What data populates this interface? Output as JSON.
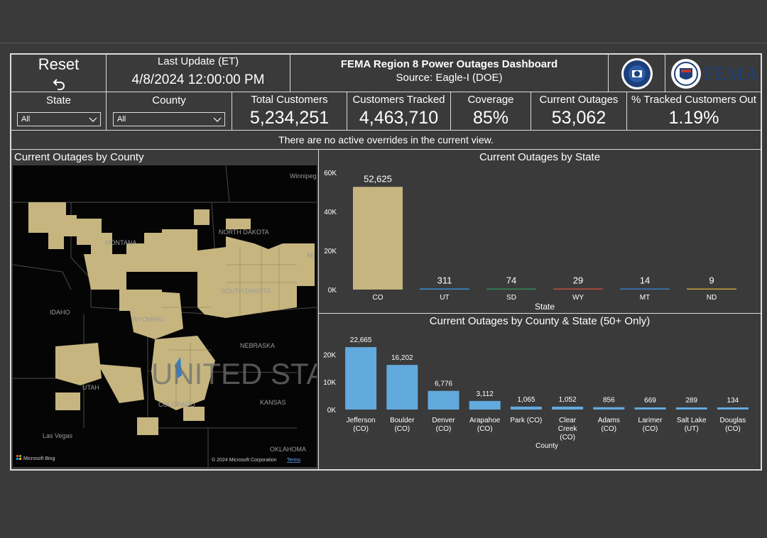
{
  "reset": {
    "label": "Reset",
    "icon": "undo-arrow-icon"
  },
  "update": {
    "label": "Last Update (ET)",
    "value": "4/8/2024 12:00:00 PM"
  },
  "header": {
    "title": "FEMA Region 8 Power Outages Dashboard",
    "source": "Source: Eagle-I (DOE)",
    "fema_text": "FEMA"
  },
  "slicers": {
    "state": {
      "label": "State",
      "value": "All"
    },
    "county": {
      "label": "County",
      "value": "All"
    }
  },
  "kpis": [
    {
      "label": "Total Customers",
      "value": "5,234,251"
    },
    {
      "label": "Customers Tracked",
      "value": "4,463,710"
    },
    {
      "label": "Coverage",
      "value": "85%"
    },
    {
      "label": "Current Outages",
      "value": "53,062"
    },
    {
      "label": "% Tracked Customers Out",
      "value": "1.19%"
    }
  ],
  "notice": "There are no active overrides in the current view.",
  "map": {
    "title": "Current Outages by County",
    "labels": {
      "montana": "MONTANA",
      "north_dakota": "NORTH DAKOTA",
      "south_dakota": "SOUTH DAKOTA",
      "idaho": "IDAHO",
      "wyoming": "WYOMING",
      "nebraska": "NEBRASKA",
      "utah": "UTAH",
      "colorado": "COLORADO",
      "kansas": "KANSAS",
      "las_vegas": "Las Vegas",
      "oklahoma": "OKLAHOMA",
      "winnipeg": "Winnipeg",
      "mi": "MI",
      "watermark": "UNITED STA"
    },
    "bing": "Microsoft Bing",
    "copyright": "© 2024 Microsoft Corporation",
    "terms": "Terms"
  },
  "colors": {
    "gold": "#c6b57f",
    "blue": "#62a9dd",
    "ut": "#3a8fd0",
    "sd": "#2e8b57",
    "wy": "#c0503d",
    "mt": "#3a7bbf",
    "nd": "#c8a040"
  },
  "chart_data": [
    {
      "type": "bar",
      "title": "Current Outages by State",
      "xlabel": "State",
      "ylabel": "",
      "categories": [
        "CO",
        "UT",
        "SD",
        "WY",
        "MT",
        "ND"
      ],
      "values": [
        52625,
        311,
        74,
        29,
        14,
        9
      ],
      "data_labels": [
        "52,625",
        "311",
        "74",
        "29",
        "14",
        "9"
      ],
      "yticks": [
        "0K",
        "20K",
        "40K",
        "60K"
      ],
      "ylim": [
        0,
        60000
      ]
    },
    {
      "type": "bar",
      "title": "Current Outages by County & State (50+ Only)",
      "xlabel": "County",
      "ylabel": "",
      "categories": [
        [
          "Jefferson",
          "(CO)"
        ],
        [
          "Boulder",
          "(CO)"
        ],
        [
          "Denver",
          "(CO)"
        ],
        [
          "Arapahoe",
          "(CO)"
        ],
        [
          "Park (CO)"
        ],
        [
          "Clear",
          "Creek",
          "(CO)"
        ],
        [
          "Adams",
          "(CO)"
        ],
        [
          "Larimer",
          "(CO)"
        ],
        [
          "Salt Lake",
          "(UT)"
        ],
        [
          "Douglas",
          "(CO)"
        ]
      ],
      "values": [
        22665,
        16202,
        6776,
        3112,
        1065,
        1052,
        856,
        669,
        289,
        134
      ],
      "data_labels": [
        "22,665",
        "16,202",
        "6,776",
        "3,112",
        "1,065",
        "1,052",
        "856",
        "669",
        "289",
        "134"
      ],
      "yticks": [
        "0K",
        "10K",
        "20K"
      ],
      "ylim": [
        0,
        25000
      ]
    }
  ]
}
